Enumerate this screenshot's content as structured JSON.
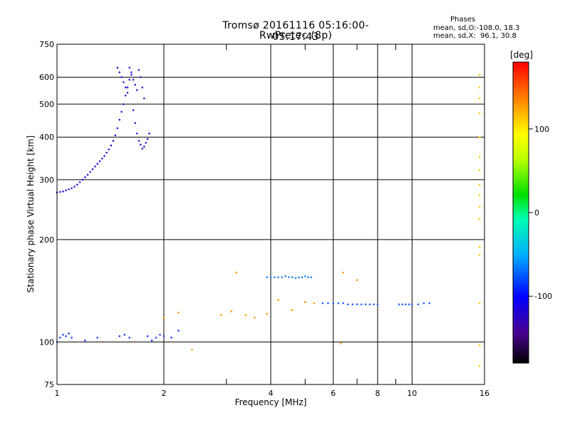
{
  "title_line1": "Tromsø 20161116 05:16:00-05:17:43",
  "title_line2": "RwPretec (8p)",
  "phases_header": "Phases",
  "phases_stat_o": "mean, sd,O:-108.0, 18.3",
  "phases_stat_x": "mean, sd,X:  96.1, 30.8",
  "colorbar": {
    "unit": "[deg]",
    "range": [
      -180,
      180
    ],
    "ticks": [
      "100",
      "0",
      "-100"
    ],
    "tick_values": [
      100,
      0,
      -100
    ]
  },
  "chart_data": {
    "type": "scatter",
    "xlabel": "Frequency [MHz]",
    "ylabel": "Stationary phase Virtual Height [km]",
    "x_scale": "log",
    "y_scale": "log",
    "xlim": [
      1,
      16
    ],
    "ylim": [
      75,
      750
    ],
    "grid": true,
    "x_ticks": [
      1,
      2,
      4,
      6,
      8,
      10,
      16
    ],
    "x_tick_labels": [
      "1",
      "2",
      "4",
      "6",
      "8",
      "10",
      "16"
    ],
    "x_minor_ticks": [
      3,
      5,
      7,
      9
    ],
    "y_ticks": [
      75,
      100,
      200,
      300,
      400,
      500,
      600,
      750
    ],
    "y_tick_labels": [
      "75",
      "100",
      "200",
      "300",
      "400",
      "500",
      "600",
      "750"
    ],
    "series": [
      {
        "role": "o-mode F-layer trace",
        "color": "#3a16d8",
        "x": [
          1.0,
          1.02,
          1.04,
          1.06,
          1.08,
          1.1,
          1.12,
          1.14,
          1.16,
          1.18,
          1.2,
          1.22,
          1.24,
          1.26,
          1.28,
          1.3,
          1.32,
          1.34,
          1.36,
          1.38,
          1.4,
          1.42,
          1.44,
          1.46,
          1.48,
          1.5,
          1.52,
          1.54,
          1.56,
          1.58,
          1.6,
          1.62,
          1.64,
          1.66,
          1.68,
          1.7,
          1.72,
          1.74,
          1.76,
          1.78,
          1.8,
          1.82
        ],
        "y": [
          275,
          276,
          277,
          279,
          281,
          283,
          286,
          290,
          295,
          300,
          305,
          310,
          316,
          322,
          328,
          334,
          340,
          346,
          352,
          360,
          368,
          378,
          390,
          405,
          425,
          450,
          475,
          500,
          530,
          560,
          590,
          620,
          480,
          440,
          410,
          390,
          380,
          370,
          375,
          385,
          395,
          410
        ]
      },
      {
        "role": "o-mode upper spread",
        "color": "#3a16d8",
        "x": [
          1.48,
          1.5,
          1.52,
          1.54,
          1.56,
          1.58,
          1.6,
          1.62,
          1.64,
          1.66,
          1.68,
          1.7,
          1.72,
          1.74,
          1.76
        ],
        "y": [
          640,
          620,
          600,
          580,
          560,
          540,
          640,
          610,
          590,
          570,
          550,
          630,
          600,
          560,
          520
        ]
      },
      {
        "role": "scattered echoes",
        "color": "#ff9900",
        "x": [
          2.0,
          2.2,
          2.4,
          2.9,
          3.1,
          3.2,
          3.4,
          3.6,
          3.9,
          4.2,
          4.6,
          5.0,
          5.3,
          6.3,
          6.4,
          7.0
        ],
        "y": [
          118,
          122,
          95,
          120,
          123,
          160,
          120,
          118,
          121,
          133,
          124,
          131,
          130,
          99,
          160,
          152
        ]
      },
      {
        "role": "E-layer trace ~155 km",
        "color": "#1f7fff",
        "x": [
          3.9,
          4.0,
          4.1,
          4.2,
          4.3,
          4.4,
          4.5,
          4.6,
          4.7,
          4.8,
          4.9,
          5.0,
          5.1,
          5.2
        ],
        "y": [
          155,
          155,
          155,
          155,
          155,
          156,
          155,
          155,
          154,
          155,
          155,
          156,
          155,
          155
        ]
      },
      {
        "role": "sporadic-E trace ~130 km",
        "color": "#1a5cff",
        "x": [
          5.6,
          5.8,
          6.0,
          6.2,
          6.4,
          6.6,
          6.8,
          7.0,
          7.2,
          7.4,
          7.6,
          7.8,
          8.0,
          9.2,
          9.4,
          9.6,
          9.8,
          10.0,
          10.4,
          10.8,
          11.2
        ],
        "y": [
          130,
          130,
          130,
          130,
          130,
          129,
          129,
          129,
          129,
          129,
          129,
          129,
          129,
          129,
          129,
          129,
          129,
          129,
          129,
          130,
          130
        ]
      },
      {
        "role": "edge column near 15.5 MHz",
        "color": "#ffcc00",
        "x": [
          15.5,
          15.5,
          15.5,
          15.5,
          15.5,
          15.5,
          15.5,
          15.5,
          15.5,
          15.5,
          15.5,
          15.5,
          15.5,
          15.5,
          15.5,
          15.5
        ],
        "y": [
          610,
          560,
          520,
          470,
          400,
          350,
          320,
          290,
          270,
          250,
          230,
          190,
          180,
          130,
          98,
          85
        ]
      },
      {
        "role": "low-height echoes ~100 km",
        "color": "#2040ff",
        "x": [
          1.0,
          1.02,
          1.04,
          1.06,
          1.08,
          1.1,
          1.2,
          1.3,
          1.5,
          1.55,
          1.6,
          1.8,
          1.85,
          1.9,
          1.95,
          2.0,
          2.1,
          2.2
        ],
        "y": [
          100,
          103,
          105,
          104,
          106,
          103,
          101,
          103,
          104,
          105,
          103,
          104,
          101,
          103,
          105,
          104,
          103,
          108
        ]
      }
    ]
  }
}
